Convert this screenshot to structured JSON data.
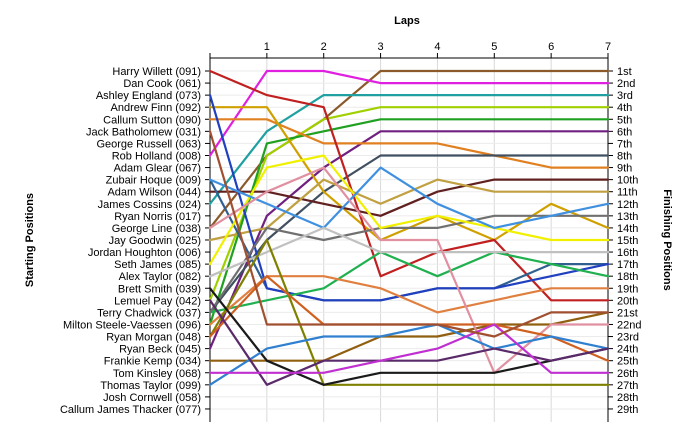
{
  "chart_data": {
    "type": "line",
    "xlabel": "Laps",
    "ylabel_left": "Starting Positions",
    "ylabel_right": "Finishing Positions",
    "x": [
      0,
      1,
      2,
      3,
      4,
      5,
      6,
      7
    ],
    "x_tick_labels": [
      "1",
      "2",
      "3",
      "4",
      "5",
      "6",
      "7"
    ],
    "ylim": [
      1,
      29
    ],
    "grid": true,
    "start_labels": [
      "Harry Willett (091)",
      "Dan Cook (061)",
      "Ashley England (073)",
      "Andrew Finn (092)",
      "Callum Sutton (090)",
      "Jack Batholomew (031)",
      "George Russell (063)",
      "Rob Holland (008)",
      "Adam Glear (067)",
      "Zubair Hoque (009)",
      "Adam Wilson (044)",
      "James Cossins (024)",
      "Ryan Norris (017)",
      "George Line (038)",
      "Jay Goodwin (025)",
      "Jordan Houghton (006)",
      "Seth James (085)",
      "Alex Taylor (082)",
      "Brett Smith (039)",
      "Lemuel Pay (042)",
      "Terry Chadwick (037)",
      "Milton Steele-Vaessen (096)",
      "Ryan Morgan (048)",
      "Ryan Beck (045)",
      "Frankie Kemp (034)",
      "Tom Kinsley (068)",
      "Thomas Taylor (099)",
      "Josh Cornwell (058)",
      "Callum James Thacker (077)"
    ],
    "finish_labels": [
      "1st",
      "2nd",
      "3rd",
      "4th",
      "5th",
      "6th",
      "7th",
      "8th",
      "9th",
      "10th",
      "11th",
      "12th",
      "13th",
      "14th",
      "15th",
      "16th",
      "17th",
      "18th",
      "19th",
      "20th",
      "21st",
      "22nd",
      "23rd",
      "24th",
      "25th",
      "26th",
      "27th",
      "28th",
      "29th"
    ],
    "series": [
      {
        "color": "#8b5a2b",
        "values": [
          14,
          8,
          5,
          1,
          1,
          1,
          1,
          1
        ]
      },
      {
        "color": "#e020e0",
        "values": [
          8,
          1,
          1,
          2,
          2,
          2,
          2,
          2
        ]
      },
      {
        "color": "#20a0a0",
        "values": [
          12,
          6,
          3,
          3,
          3,
          3,
          3,
          3
        ]
      },
      {
        "color": "#a0d000",
        "values": [
          20,
          8,
          5,
          4,
          4,
          4,
          4,
          4
        ]
      },
      {
        "color": "#20a020",
        "values": [
          22,
          7,
          6,
          5,
          5,
          5,
          5,
          5
        ]
      },
      {
        "color": "#702080",
        "values": [
          24,
          13,
          9,
          6,
          6,
          6,
          6,
          6
        ]
      },
      {
        "color": "#e08020",
        "values": [
          5,
          5,
          7,
          7,
          7,
          8,
          9,
          9
        ]
      },
      {
        "color": "#405060",
        "values": [
          21,
          15,
          11,
          8,
          8,
          8,
          8,
          8
        ]
      },
      {
        "color": "#d0a000",
        "values": [
          4,
          4,
          11,
          15,
          13,
          15,
          12,
          14
        ]
      },
      {
        "color": "#602020",
        "values": [
          11,
          11,
          12,
          13,
          11,
          10,
          10,
          10
        ]
      },
      {
        "color": "#c0a040",
        "values": [
          15,
          14,
          10,
          12,
          10,
          11,
          11,
          11
        ]
      },
      {
        "color": "#c02020",
        "values": [
          1,
          3,
          4,
          18,
          16,
          15,
          20,
          20
        ]
      },
      {
        "color": "#306090",
        "values": [
          10,
          19,
          20,
          20,
          19,
          19,
          17,
          17
        ]
      },
      {
        "color": "#2040c0",
        "values": [
          3,
          19,
          20,
          20,
          19,
          19,
          18,
          17
        ]
      },
      {
        "color": "#20b050",
        "values": [
          21,
          20,
          19,
          16,
          18,
          16,
          17,
          18
        ]
      },
      {
        "color": "#707070",
        "values": [
          21,
          14,
          15,
          14,
          14,
          13,
          13,
          13
        ]
      },
      {
        "color": "#f0f000",
        "values": [
          17,
          9,
          8,
          14,
          13,
          14,
          15,
          15
        ]
      },
      {
        "color": "#4090e0",
        "values": [
          10,
          12,
          14,
          9,
          12,
          14,
          13,
          12
        ]
      },
      {
        "color": "#e08040",
        "values": [
          22,
          18,
          18,
          19,
          21,
          20,
          19,
          19
        ]
      },
      {
        "color": "#906010",
        "values": [
          25,
          25,
          25,
          23,
          23,
          22,
          22,
          21
        ]
      },
      {
        "color": "#c0c0c0",
        "values": [
          18,
          16,
          14,
          16,
          16,
          16,
          16,
          16
        ]
      },
      {
        "color": "#808000",
        "values": [
          23,
          15,
          27,
          27,
          27,
          27,
          27,
          27
        ]
      },
      {
        "color": "#e090a0",
        "values": [
          14,
          11,
          9,
          15,
          15,
          26,
          22,
          22
        ]
      },
      {
        "color": "#d06020",
        "values": [
          23,
          18,
          22,
          22,
          22,
          22,
          23,
          25
        ]
      },
      {
        "color": "#1a1a1a",
        "values": [
          19,
          25,
          27,
          26,
          26,
          26,
          25,
          24
        ]
      },
      {
        "color": "#3080d0",
        "values": [
          27,
          24,
          23,
          23,
          22,
          24,
          23,
          24
        ]
      },
      {
        "color": "#5a2a6a",
        "values": [
          20,
          27,
          25,
          25,
          25,
          24,
          25,
          24
        ]
      },
      {
        "color": "#c030d0",
        "values": [
          26,
          26,
          26,
          25,
          24,
          22,
          26,
          26
        ]
      },
      {
        "color": "#a05030",
        "values": [
          6,
          22,
          22,
          22,
          22,
          23,
          21,
          21
        ]
      }
    ]
  }
}
